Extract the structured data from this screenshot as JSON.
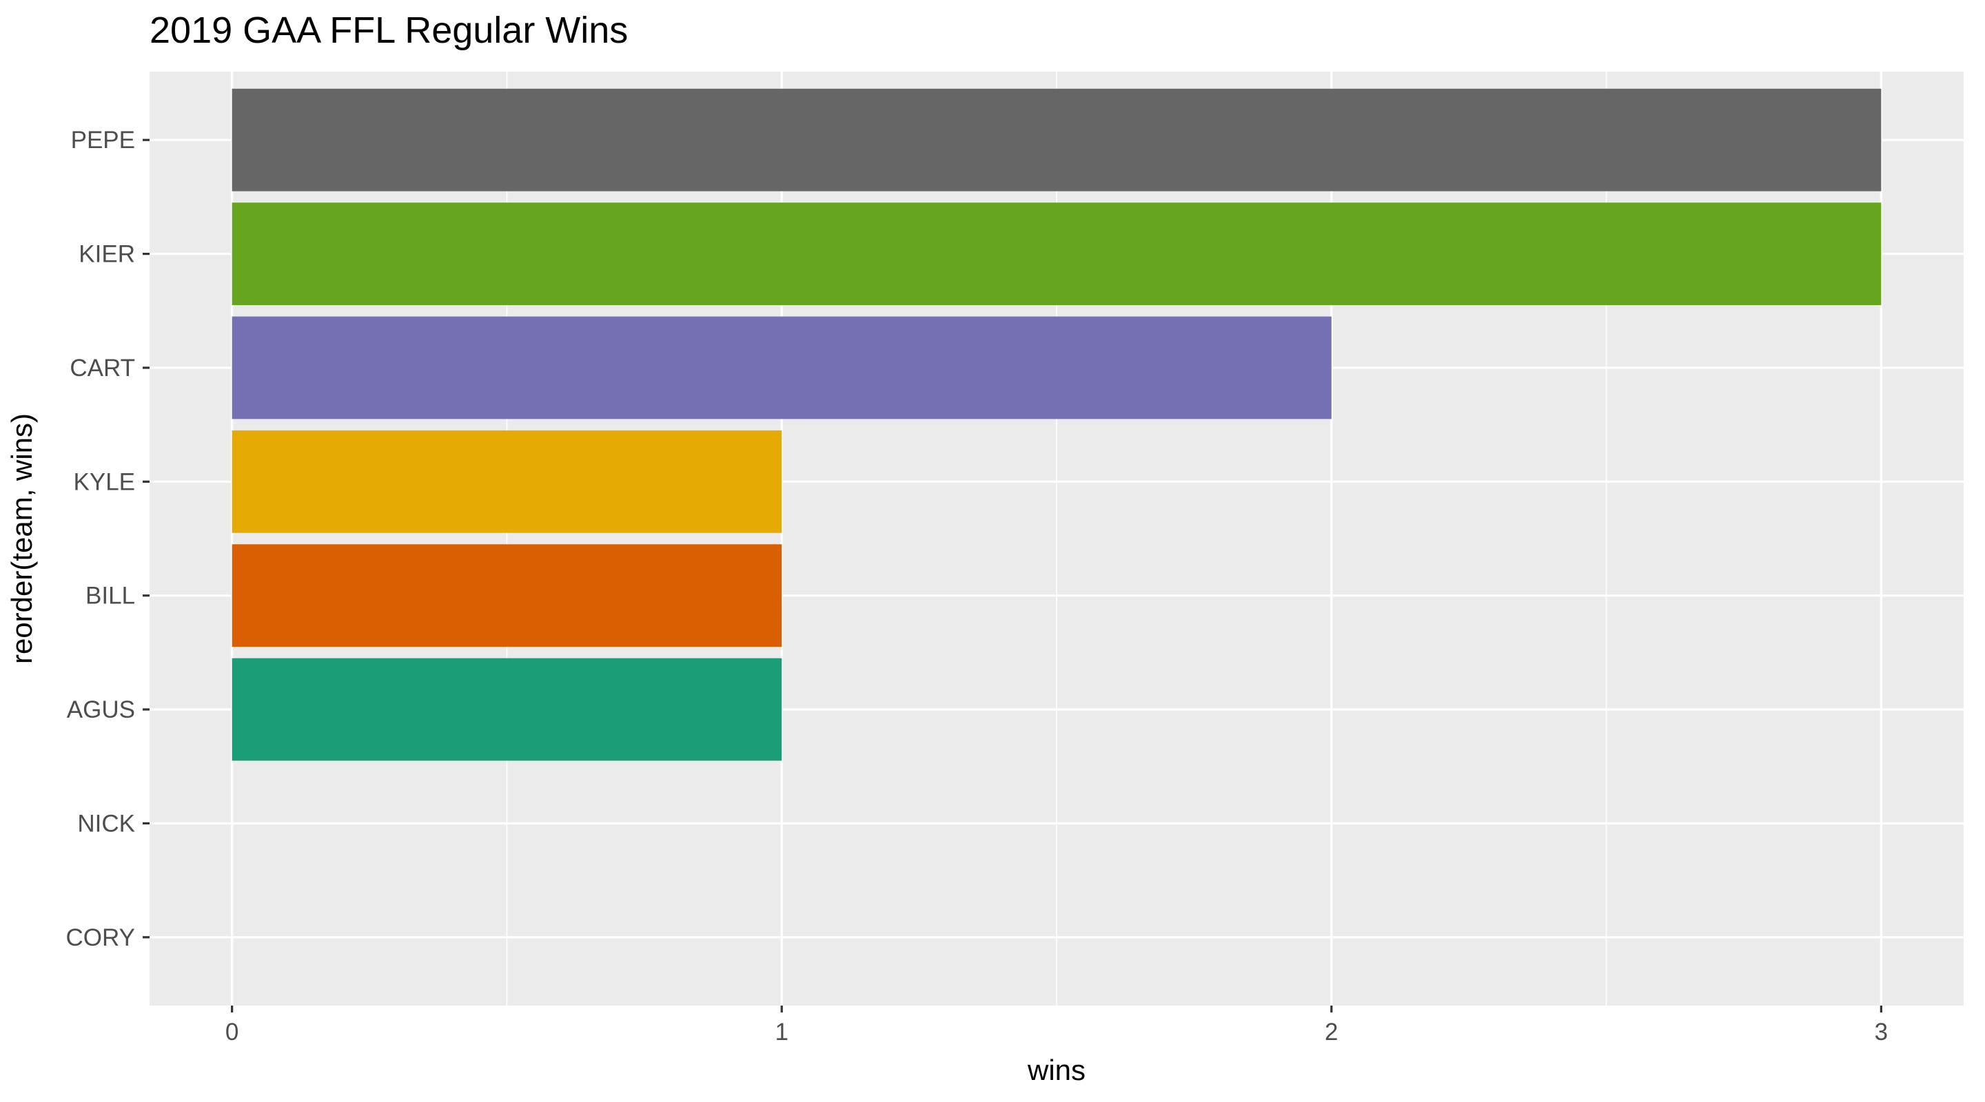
{
  "chart_data": {
    "type": "bar",
    "orientation": "horizontal",
    "title": "2019 GAA FFL Regular Wins",
    "xlabel": "wins",
    "ylabel": "reorder(team, wins)",
    "categories": [
      "PEPE",
      "KIER",
      "CART",
      "KYLE",
      "BILL",
      "AGUS",
      "NICK",
      "CORY"
    ],
    "values": [
      3,
      3,
      2,
      1,
      1,
      1,
      0,
      0
    ],
    "colors": [
      "#666666",
      "#66a61e",
      "#7570b3",
      "#e6ab02",
      "#d95f02",
      "#1b9e77",
      "#a6761d",
      "#e7298a"
    ],
    "xlim": [
      -0.15,
      3.15
    ],
    "xticks": [
      0,
      1,
      2,
      3
    ],
    "grid": true,
    "legend": "none",
    "panel_background": "#ebebeb",
    "grid_color": "#ffffff"
  }
}
